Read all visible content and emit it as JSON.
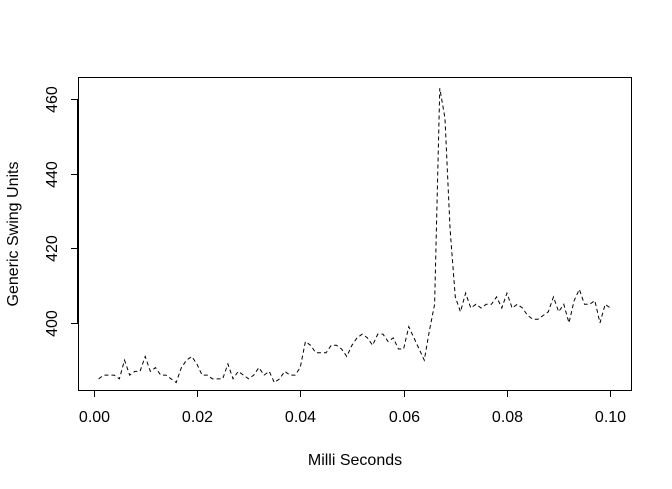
{
  "chart_data": {
    "type": "line",
    "title": "",
    "xlabel": "Milli Seconds",
    "ylabel": "Generic Swing Units",
    "xlim": [
      -0.003,
      0.104
    ],
    "ylim": [
      382,
      466
    ],
    "xticks": [
      0.0,
      0.02,
      0.04,
      0.06,
      0.08,
      0.1
    ],
    "xtick_labels": [
      "0.00",
      "0.02",
      "0.04",
      "0.06",
      "0.08",
      "0.10"
    ],
    "yticks": [
      400,
      420,
      440,
      460
    ],
    "ytick_labels": [
      "400",
      "420",
      "440",
      "460"
    ],
    "grid": false,
    "line_style": "dashed",
    "line_color": "#000000",
    "series": [
      {
        "x": [
          0.001,
          0.002,
          0.003,
          0.004,
          0.005,
          0.006,
          0.007,
          0.008,
          0.009,
          0.01,
          0.011,
          0.012,
          0.013,
          0.014,
          0.015,
          0.016,
          0.017,
          0.018,
          0.019,
          0.02,
          0.021,
          0.022,
          0.023,
          0.024,
          0.025,
          0.026,
          0.027,
          0.028,
          0.029,
          0.03,
          0.031,
          0.032,
          0.033,
          0.034,
          0.035,
          0.036,
          0.037,
          0.038,
          0.039,
          0.04,
          0.041,
          0.042,
          0.043,
          0.044,
          0.045,
          0.046,
          0.047,
          0.048,
          0.049,
          0.05,
          0.051,
          0.052,
          0.053,
          0.054,
          0.055,
          0.056,
          0.057,
          0.058,
          0.059,
          0.06,
          0.061,
          0.062,
          0.063,
          0.064,
          0.065,
          0.066,
          0.067,
          0.068,
          0.069,
          0.07,
          0.071,
          0.072,
          0.073,
          0.074,
          0.075,
          0.076,
          0.077,
          0.078,
          0.079,
          0.08,
          0.081,
          0.082,
          0.083,
          0.084,
          0.085,
          0.086,
          0.087,
          0.088,
          0.089,
          0.09,
          0.091,
          0.092,
          0.093,
          0.094,
          0.095,
          0.096,
          0.097,
          0.098,
          0.099,
          0.1
        ],
        "values": [
          385,
          386,
          386,
          386,
          385,
          390,
          386,
          387,
          387,
          391,
          387,
          388,
          386,
          386,
          385,
          384,
          388,
          390,
          391,
          389,
          386,
          386,
          385,
          385,
          385,
          389,
          385,
          387,
          386,
          385,
          386,
          388,
          386,
          387,
          384,
          385,
          387,
          386,
          386,
          388,
          395,
          394,
          392,
          392,
          392,
          394,
          394,
          393,
          391,
          394,
          396,
          397,
          396,
          394,
          397,
          397,
          395,
          396,
          393,
          393,
          399,
          396,
          393,
          390,
          398,
          405,
          463,
          455,
          425,
          407,
          403,
          408,
          404,
          405,
          404,
          405,
          405,
          407,
          404,
          408,
          404,
          405,
          404,
          402,
          401,
          401,
          402,
          403,
          407,
          403,
          405,
          400,
          406,
          409,
          405,
          405,
          406,
          400,
          405,
          404
        ]
      }
    ]
  }
}
